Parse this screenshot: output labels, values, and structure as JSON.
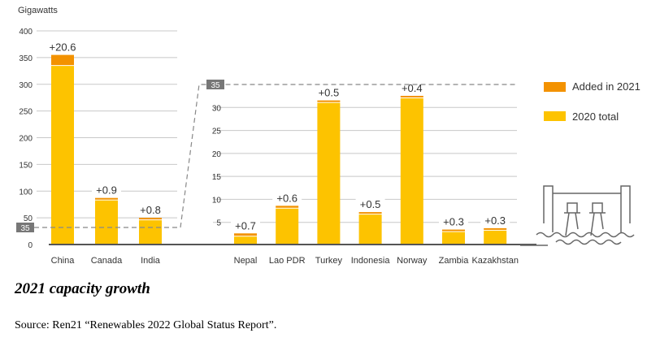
{
  "chart_data": [
    {
      "type": "bar",
      "stacked": true,
      "ylabel": "Gigawatts",
      "ylim": [
        0,
        400
      ],
      "yticks": [
        0,
        50,
        100,
        150,
        200,
        250,
        300,
        350,
        400
      ],
      "categories": [
        "China",
        "Canada",
        "India"
      ],
      "series": [
        {
          "name": "2020 total",
          "values": [
            334.4,
            82.6,
            45.4
          ]
        },
        {
          "name": "Added in 2021",
          "values": [
            20.6,
            0.9,
            0.8
          ]
        }
      ],
      "labels": [
        "+20.6",
        "+0.9",
        "+0.8"
      ],
      "zoom_marker": "35"
    },
    {
      "type": "bar",
      "stacked": true,
      "ylim": [
        0,
        35
      ],
      "yticks": [
        5,
        10,
        15,
        20,
        25,
        30
      ],
      "categories": [
        "Nepal",
        "Lao PDR",
        "Turkey",
        "Indonesia",
        "Norway",
        "Zambia",
        "Kazakhstan"
      ],
      "series": [
        {
          "name": "2020 total",
          "values": [
            1.9,
            8.0,
            31.0,
            6.7,
            32.0,
            2.9,
            3.2
          ]
        },
        {
          "name": "Added in 2021",
          "values": [
            0.7,
            0.6,
            0.5,
            0.5,
            0.4,
            0.3,
            0.3
          ]
        }
      ],
      "labels": [
        "+0.7",
        "+0.6",
        "+0.5",
        "+0.5",
        "+0.4",
        "+0.3",
        "+0.3"
      ],
      "zoom_marker": "35"
    }
  ],
  "legend": [
    {
      "label": "Added in 2021",
      "color": "#f39200"
    },
    {
      "label": "2020 total",
      "color": "#fdc300"
    }
  ],
  "colors": {
    "base": "#fdc300",
    "added": "#f39200",
    "grid": "#c8c8c8",
    "axis": "#555555"
  },
  "caption": "2021 capacity growth",
  "source": "Source: Ren21 “Renewables 2022 Global Status Report”."
}
